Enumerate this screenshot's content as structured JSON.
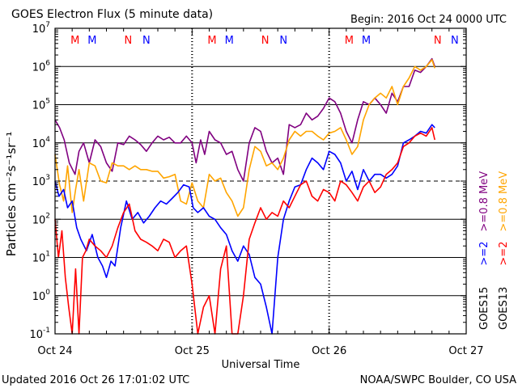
{
  "header": {
    "title": "GOES Electron Flux (5 minute data)",
    "begin": "Begin: 2016 Oct 24 0000 UTC"
  },
  "footer": {
    "updated": "Updated 2016 Oct 26 17:01:02 UTC",
    "credit": "NOAA/SWPC Boulder, CO USA"
  },
  "colors": {
    "goes13_ge2": "#ff0000",
    "goes13_ge08": "#ffa500",
    "goes15_ge2": "#0000ff",
    "goes15_ge08": "#800080",
    "marker_m": "#ff0000",
    "marker_m_goes15": "#0000ff",
    "marker_n": "#ff0000",
    "marker_n_goes15": "#0000ff"
  },
  "chart_data": {
    "type": "line",
    "title": "GOES Electron Flux (5 minute data)",
    "xlabel": "Universal Time",
    "ylabel": "Particles cm⁻²s⁻¹sr⁻¹",
    "yscale": "log",
    "ylim": [
      0.1,
      10000000
    ],
    "xlim": [
      0,
      72
    ],
    "x_unit": "hours since 2016 Oct 24 0000 UTC",
    "x_ticks": [
      {
        "x": 0,
        "label": "Oct 24"
      },
      {
        "x": 24,
        "label": "Oct 25"
      },
      {
        "x": 48,
        "label": "Oct 26"
      },
      {
        "x": 72,
        "label": "Oct 27"
      }
    ],
    "y_ticks": [
      {
        "exp": -1
      },
      {
        "exp": 0
      },
      {
        "exp": 1
      },
      {
        "exp": 2
      },
      {
        "exp": 3
      },
      {
        "exp": 4
      },
      {
        "exp": 5
      },
      {
        "exp": 6
      },
      {
        "exp": 7
      }
    ],
    "grid": true,
    "threshold": 1000,
    "legend_right": [
      {
        "text": "GOES15",
        "color": "#000000"
      },
      {
        "text": ">=2",
        "color": "#0000ff"
      },
      {
        "text": ">=0.8 MeV",
        "color": "#800080"
      },
      {
        "text": "GOES13",
        "color": "#000000"
      },
      {
        "text": ">=2",
        "color": "#ff0000"
      },
      {
        "text": ">=0.8 MeV",
        "color": "#ffa500"
      }
    ],
    "markers": [
      {
        "x": 3.5,
        "label": "M",
        "color": "#ff0000"
      },
      {
        "x": 6.5,
        "label": "M",
        "color": "#0000ff"
      },
      {
        "x": 12.8,
        "label": "N",
        "color": "#ff0000"
      },
      {
        "x": 16.0,
        "label": "N",
        "color": "#0000ff"
      },
      {
        "x": 27.5,
        "label": "M",
        "color": "#ff0000"
      },
      {
        "x": 30.5,
        "label": "M",
        "color": "#0000ff"
      },
      {
        "x": 36.8,
        "label": "N",
        "color": "#ff0000"
      },
      {
        "x": 40.0,
        "label": "N",
        "color": "#0000ff"
      },
      {
        "x": 51.5,
        "label": "M",
        "color": "#ff0000"
      },
      {
        "x": 54.5,
        "label": "M",
        "color": "#0000ff"
      },
      {
        "x": 67.0,
        "label": "N",
        "color": "#ff0000"
      },
      {
        "x": 70.0,
        "label": "N",
        "color": "#0000ff"
      }
    ],
    "series": [
      {
        "name": "GOES15 >=0.8 MeV",
        "color": "#800080",
        "x": [
          0,
          0.8,
          1.6,
          2.5,
          3.5,
          4.2,
          5.0,
          6.0,
          7.0,
          8.0,
          9.0,
          10.0,
          11.0,
          12.0,
          13.0,
          14.0,
          15.0,
          16.0,
          17.0,
          18.0,
          19.0,
          20.0,
          21.0,
          22.0,
          23.0,
          24.0,
          24.7,
          25.5,
          26.2,
          27.0,
          28.0,
          29.0,
          30.0,
          31.0,
          32.0,
          33.0,
          34.0,
          35.0,
          36.0,
          37.0,
          38.0,
          39.0,
          40.0,
          41.0,
          42.0,
          43.0,
          44.0,
          45.0,
          46.0,
          47.0,
          48.0,
          49.0,
          50.0,
          51.0,
          52.0,
          53.0,
          54.0,
          55.0,
          56.0,
          57.0,
          58.0,
          59.0,
          60.0,
          61.0,
          62.0,
          63.0,
          64.0,
          65.0,
          66.0,
          66.5
        ],
        "y": [
          40000,
          25000,
          12000,
          3000,
          1500,
          6000,
          10000,
          3000,
          12000,
          8000,
          3000,
          1800,
          10000,
          9000,
          15000,
          12000,
          9000,
          6000,
          10000,
          15000,
          12000,
          14000,
          10000,
          10000,
          15000,
          10000,
          3000,
          12000,
          5000,
          20000,
          12000,
          10000,
          5000,
          6000,
          2000,
          1000,
          10000,
          25000,
          20000,
          6000,
          3000,
          4000,
          1500,
          30000,
          25000,
          30000,
          60000,
          40000,
          50000,
          80000,
          150000,
          120000,
          60000,
          20000,
          10000,
          40000,
          120000,
          100000,
          150000,
          100000,
          60000,
          200000,
          120000,
          300000,
          300000,
          800000,
          700000,
          1000000,
          1600000,
          1000000
        ]
      },
      {
        "name": "GOES13 >=0.8 MeV",
        "color": "#ffa500",
        "x": [
          0,
          0.8,
          1.5,
          2.2,
          3.0,
          3.6,
          4.2,
          5.0,
          6.0,
          7.0,
          8.0,
          9.0,
          10.0,
          11.0,
          12.0,
          13.0,
          14.0,
          15.0,
          16.0,
          17.0,
          18.0,
          19.0,
          20.0,
          21.0,
          22.0,
          23.0,
          24.0,
          25.0,
          26.0,
          27.0,
          28.0,
          29.0,
          30.0,
          31.0,
          32.0,
          33.0,
          34.0,
          35.0,
          36.0,
          37.0,
          38.0,
          39.0,
          40.0,
          41.0,
          42.0,
          43.0,
          44.0,
          45.0,
          46.0,
          47.0,
          48.0,
          49.0,
          50.0,
          51.0,
          52.0,
          53.0,
          54.0,
          55.0,
          56.0,
          57.0,
          58.0,
          59.0,
          60.0,
          61.0,
          62.0,
          63.0,
          64.0,
          65.0,
          66.0,
          66.5
        ],
        "y": [
          5000,
          800,
          300,
          2500,
          150,
          600,
          2000,
          300,
          3000,
          2500,
          1000,
          900,
          3000,
          2500,
          2500,
          2000,
          2500,
          2000,
          2000,
          1800,
          1800,
          1200,
          1300,
          1500,
          300,
          250,
          900,
          300,
          200,
          1500,
          1000,
          1200,
          500,
          300,
          120,
          200,
          2000,
          8000,
          6000,
          2500,
          3000,
          2000,
          4000,
          12000,
          20000,
          15000,
          20000,
          20000,
          15000,
          12000,
          18000,
          20000,
          25000,
          12000,
          5000,
          8000,
          40000,
          100000,
          150000,
          200000,
          150000,
          300000,
          100000,
          300000,
          500000,
          1000000,
          800000,
          1000000,
          1500000,
          900000
        ]
      },
      {
        "name": "GOES15 >=2 MeV",
        "color": "#0000ff",
        "x": [
          0,
          0.7,
          1.5,
          2.2,
          3.0,
          3.8,
          4.5,
          5.5,
          6.5,
          7.5,
          8.3,
          9.0,
          9.8,
          10.5,
          11.5,
          12.5,
          13.5,
          14.5,
          15.5,
          16.5,
          17.5,
          18.5,
          19.5,
          20.5,
          21.5,
          22.5,
          23.5,
          24.2,
          25.0,
          26.0,
          27.0,
          28.0,
          29.0,
          30.0,
          31.0,
          32.0,
          33.0,
          34.0,
          35.0,
          36.0,
          37.0,
          38.0,
          39.0,
          40.0,
          41.0,
          42.0,
          43.0,
          44.0,
          45.0,
          46.0,
          47.0,
          48.0,
          49.0,
          50.0,
          51.0,
          52.0,
          53.0,
          54.0,
          55.0,
          56.0,
          57.0,
          58.0,
          59.0,
          60.0,
          61.0,
          62.0,
          63.0,
          64.0,
          65.0,
          66.0,
          66.5
        ],
        "y": [
          1000,
          400,
          600,
          200,
          300,
          60,
          30,
          15,
          40,
          10,
          6,
          3,
          8,
          6,
          60,
          300,
          100,
          150,
          80,
          120,
          200,
          300,
          250,
          350,
          500,
          800,
          700,
          200,
          150,
          200,
          120,
          100,
          60,
          40,
          15,
          8,
          20,
          12,
          3,
          2,
          0.5,
          0.1,
          10,
          100,
          300,
          700,
          800,
          2000,
          4000,
          3000,
          2000,
          6000,
          5000,
          3000,
          1000,
          1800,
          600,
          2000,
          1000,
          1500,
          1500,
          1200,
          1500,
          2500,
          10000,
          12000,
          15000,
          20000,
          18000,
          30000,
          25000
        ]
      },
      {
        "name": "GOES13 >=2 MeV",
        "color": "#ff0000",
        "x": [
          0,
          0.6,
          1.2,
          1.8,
          2.4,
          3.0,
          3.6,
          4.2,
          4.8,
          5.4,
          6.0,
          7.0,
          8.0,
          9.0,
          10.0,
          11.0,
          12.0,
          13.0,
          14.0,
          15.0,
          16.0,
          17.0,
          18.0,
          19.0,
          20.0,
          21.0,
          22.0,
          23.0,
          24.0,
          25.0,
          26.0,
          27.0,
          28.0,
          29.0,
          30.0,
          31.0,
          32.0,
          33.0,
          34.0,
          35.0,
          36.0,
          37.0,
          38.0,
          39.0,
          40.0,
          41.0,
          42.0,
          43.0,
          44.0,
          45.0,
          46.0,
          47.0,
          48.0,
          49.0,
          50.0,
          51.0,
          52.0,
          53.0,
          54.0,
          55.0,
          56.0,
          57.0,
          58.0,
          59.0,
          60.0,
          61.0,
          62.0,
          63.0,
          64.0,
          65.0,
          66.0,
          66.5
        ],
        "y": [
          100,
          10,
          50,
          3,
          0.5,
          0.1,
          5,
          0.1,
          10,
          15,
          30,
          20,
          15,
          10,
          20,
          60,
          150,
          250,
          50,
          30,
          25,
          20,
          15,
          30,
          25,
          10,
          15,
          20,
          2,
          0.1,
          0.5,
          1,
          0.1,
          5,
          20,
          0.1,
          0.1,
          1,
          30,
          80,
          200,
          100,
          150,
          120,
          300,
          200,
          400,
          800,
          1000,
          400,
          300,
          600,
          500,
          300,
          1000,
          800,
          500,
          300,
          700,
          1000,
          500,
          700,
          1500,
          2000,
          3000,
          8000,
          10000,
          15000,
          18000,
          15000,
          25000,
          12000
        ]
      }
    ]
  }
}
